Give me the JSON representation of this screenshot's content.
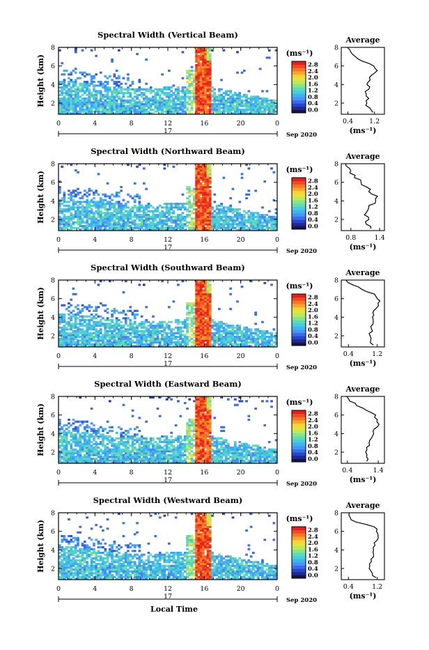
{
  "figure": {
    "xlabel": "Local Time",
    "date_label": "Sep 2020",
    "day_label": "17",
    "ylabel": "Height (km)",
    "unit_label": "(ms⁻¹)",
    "avg_xlabel": "(ms⁻¹)",
    "avg_title": "Average"
  },
  "chart_data": [
    {
      "type": "heatmap",
      "title": "Spectral Width (Vertical Beam)",
      "xlabel": "Local Time",
      "ylabel": "Height (km)",
      "x_ticks": [
        "0",
        "4",
        "8",
        "12",
        "16",
        "20",
        "0"
      ],
      "y_ticks": [
        "2",
        "4",
        "6",
        "8"
      ],
      "xlim": [
        0,
        24
      ],
      "ylim": [
        0.8,
        8.0
      ],
      "colorbar": {
        "label": "(ms⁻¹)",
        "ticks": [
          "0.0",
          "0.4",
          "0.8",
          "1.2",
          "1.6",
          "2.0",
          "2.4",
          "2.8"
        ],
        "range": [
          0,
          3.0
        ]
      },
      "average_profile": {
        "title": "Average",
        "xlabel": "(ms⁻¹)",
        "x_ticks": [
          "0.4",
          "1.2"
        ],
        "xlim": [
          0.2,
          1.5
        ],
        "y_ticks": [
          "2",
          "4",
          "6",
          "8"
        ],
        "ylim": [
          0.8,
          8.0
        ],
        "heights": [
          1.0,
          1.5,
          2.0,
          2.5,
          3.0,
          3.5,
          4.0,
          4.5,
          5.0,
          5.5,
          6.0,
          6.5,
          7.0,
          7.5,
          8.0
        ],
        "values": [
          1.15,
          1.05,
          0.95,
          1.0,
          0.95,
          1.0,
          1.0,
          1.05,
          1.1,
          1.3,
          1.2,
          0.85,
          0.6,
          0.5,
          0.4
        ]
      }
    },
    {
      "type": "heatmap",
      "title": "Spectral Width (Northward Beam)",
      "xlabel": "Local Time",
      "ylabel": "Height (km)",
      "x_ticks": [
        "0",
        "4",
        "8",
        "12",
        "16",
        "20",
        "0"
      ],
      "y_ticks": [
        "2",
        "4",
        "6",
        "8"
      ],
      "xlim": [
        0,
        24
      ],
      "ylim": [
        0.8,
        8.0
      ],
      "colorbar": {
        "label": "(ms⁻¹)",
        "ticks": [
          "0.0",
          "0.4",
          "0.8",
          "1.2",
          "1.6",
          "2.0",
          "2.4",
          "2.8"
        ],
        "range": [
          0,
          3.0
        ]
      },
      "average_profile": {
        "title": "Average",
        "xlabel": "(ms⁻¹)",
        "x_ticks": [
          "0.8",
          "1.4"
        ],
        "xlim": [
          0.6,
          1.5
        ],
        "y_ticks": [
          "2",
          "4",
          "6",
          "8"
        ],
        "ylim": [
          0.8,
          8.0
        ],
        "heights": [
          1.0,
          1.5,
          2.0,
          2.5,
          3.0,
          3.5,
          4.0,
          4.5,
          5.0,
          5.5,
          6.0,
          6.5,
          7.0,
          7.5,
          8.0
        ],
        "values": [
          1.2,
          1.15,
          1.15,
          1.1,
          1.15,
          1.2,
          1.3,
          1.35,
          1.2,
          1.1,
          1.0,
          0.9,
          0.8,
          0.75,
          0.7
        ]
      }
    },
    {
      "type": "heatmap",
      "title": "Spectral Width (Southward Beam)",
      "xlabel": "Local Time",
      "ylabel": "Height (km)",
      "x_ticks": [
        "0",
        "4",
        "8",
        "12",
        "16",
        "20",
        "0"
      ],
      "y_ticks": [
        "2",
        "4",
        "6",
        "8"
      ],
      "xlim": [
        0,
        24
      ],
      "ylim": [
        0.8,
        8.0
      ],
      "colorbar": {
        "label": "(ms⁻¹)",
        "ticks": [
          "0.0",
          "0.4",
          "0.8",
          "1.2",
          "1.6",
          "2.0",
          "2.4",
          "2.8"
        ],
        "range": [
          0,
          3.0
        ]
      },
      "average_profile": {
        "title": "Average",
        "xlabel": "(ms⁻¹)",
        "x_ticks": [
          "0.4",
          "1.2"
        ],
        "xlim": [
          0.2,
          1.4
        ],
        "y_ticks": [
          "2",
          "4",
          "6",
          "8"
        ],
        "ylim": [
          0.8,
          8.0
        ],
        "heights": [
          1.0,
          1.5,
          2.0,
          2.5,
          3.0,
          3.5,
          4.0,
          4.5,
          5.0,
          5.5,
          6.0,
          6.5,
          7.0,
          7.5,
          8.0
        ],
        "values": [
          1.1,
          1.0,
          1.0,
          1.05,
          1.05,
          1.1,
          1.05,
          1.1,
          1.2,
          1.25,
          1.2,
          1.1,
          0.8,
          0.5,
          0.35
        ]
      }
    },
    {
      "type": "heatmap",
      "title": "Spectral Width (Eastward Beam)",
      "xlabel": "Local Time",
      "ylabel": "Height (km)",
      "x_ticks": [
        "0",
        "4",
        "8",
        "12",
        "16",
        "20",
        "0"
      ],
      "y_ticks": [
        "2",
        "4",
        "6",
        "8"
      ],
      "xlim": [
        0,
        24
      ],
      "ylim": [
        0.8,
        8.0
      ],
      "colorbar": {
        "label": "(ms⁻¹)",
        "ticks": [
          "0.0",
          "0.4",
          "0.8",
          "1.2",
          "1.6",
          "2.0",
          "2.4",
          "2.8"
        ],
        "range": [
          0,
          3.0
        ]
      },
      "average_profile": {
        "title": "Average",
        "xlabel": "(ms⁻¹)",
        "x_ticks": [
          "0.4",
          "1.4"
        ],
        "xlim": [
          0.2,
          1.6
        ],
        "y_ticks": [
          "2",
          "4",
          "6",
          "8"
        ],
        "ylim": [
          0.8,
          8.0
        ],
        "heights": [
          1.0,
          1.5,
          2.0,
          2.5,
          3.0,
          3.5,
          4.0,
          4.5,
          5.0,
          5.5,
          6.0,
          6.5,
          7.0,
          7.5,
          8.0
        ],
        "values": [
          1.05,
          1.0,
          1.0,
          1.05,
          1.1,
          1.2,
          1.25,
          1.3,
          1.4,
          1.35,
          1.3,
          1.0,
          0.7,
          0.5,
          0.4
        ]
      }
    },
    {
      "type": "heatmap",
      "title": "Spectral Width (Westward Beam)",
      "xlabel": "Local Time",
      "ylabel": "Height (km)",
      "x_ticks": [
        "0",
        "4",
        "8",
        "12",
        "16",
        "20",
        "0"
      ],
      "y_ticks": [
        "2",
        "4",
        "6",
        "8"
      ],
      "xlim": [
        0,
        24
      ],
      "ylim": [
        0.8,
        8.0
      ],
      "colorbar": {
        "label": "(ms⁻¹)",
        "ticks": [
          "0.0",
          "0.4",
          "0.8",
          "1.2",
          "1.6",
          "2.0",
          "2.4",
          "2.8"
        ],
        "range": [
          0,
          3.0
        ]
      },
      "average_profile": {
        "title": "Average",
        "xlabel": "(ms⁻¹)",
        "x_ticks": [
          "0.4",
          "1.2"
        ],
        "xlim": [
          0.2,
          1.4
        ],
        "y_ticks": [
          "2",
          "4",
          "6",
          "8"
        ],
        "ylim": [
          0.8,
          8.0
        ],
        "heights": [
          1.0,
          1.5,
          2.0,
          2.5,
          3.0,
          3.5,
          4.0,
          4.5,
          5.0,
          5.5,
          6.0,
          6.5,
          7.0,
          7.5,
          8.0
        ],
        "values": [
          1.15,
          1.05,
          1.0,
          1.0,
          1.05,
          1.1,
          1.1,
          1.15,
          1.2,
          1.25,
          1.2,
          1.1,
          0.6,
          0.45,
          0.4
        ]
      }
    }
  ]
}
